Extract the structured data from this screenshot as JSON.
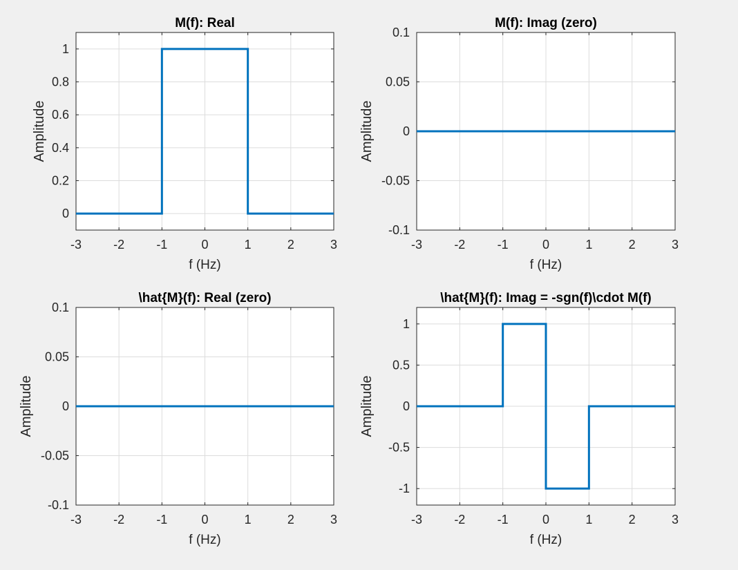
{
  "figure": {
    "background": "#f0f0f0",
    "axes_background": "#ffffff",
    "grid_color": "#dcdcdc",
    "line_color": "#0072bd"
  },
  "chart_data": [
    {
      "type": "line",
      "title": "M(f): Real",
      "xlabel": "f (Hz)",
      "ylabel": "Amplitude",
      "xlim": [
        -3,
        3
      ],
      "ylim": [
        -0.1,
        1.1
      ],
      "xticks": [
        -3,
        -2,
        -1,
        0,
        1,
        2,
        3
      ],
      "xtick_labels": [
        "-3",
        "-2",
        "-1",
        "0",
        "1",
        "2",
        "3"
      ],
      "yticks": [
        0,
        0.2,
        0.4,
        0.6,
        0.8,
        1
      ],
      "ytick_labels": [
        "0",
        "0.2",
        "0.4",
        "0.6",
        "0.8",
        "1"
      ],
      "grid": true,
      "series": [
        {
          "x": [
            -3,
            -1,
            -1,
            1,
            1,
            3
          ],
          "y": [
            0,
            0,
            1,
            1,
            0,
            0
          ]
        }
      ]
    },
    {
      "type": "line",
      "title": "M(f): Imag (zero)",
      "xlabel": "f (Hz)",
      "ylabel": "Amplitude",
      "xlim": [
        -3,
        3
      ],
      "ylim": [
        -0.1,
        0.1
      ],
      "xticks": [
        -3,
        -2,
        -1,
        0,
        1,
        2,
        3
      ],
      "xtick_labels": [
        "-3",
        "-2",
        "-1",
        "0",
        "1",
        "2",
        "3"
      ],
      "yticks": [
        -0.1,
        -0.05,
        0,
        0.05,
        0.1
      ],
      "ytick_labels": [
        "-0.1",
        "-0.05",
        "0",
        "0.05",
        "0.1"
      ],
      "grid": true,
      "series": [
        {
          "x": [
            -3,
            3
          ],
          "y": [
            0,
            0
          ]
        }
      ]
    },
    {
      "type": "line",
      "title": "\\hat{M}(f): Real (zero)",
      "xlabel": "f (Hz)",
      "ylabel": "Amplitude",
      "xlim": [
        -3,
        3
      ],
      "ylim": [
        -0.1,
        0.1
      ],
      "xticks": [
        -3,
        -2,
        -1,
        0,
        1,
        2,
        3
      ],
      "xtick_labels": [
        "-3",
        "-2",
        "-1",
        "0",
        "1",
        "2",
        "3"
      ],
      "yticks": [
        -0.1,
        -0.05,
        0,
        0.05,
        0.1
      ],
      "ytick_labels": [
        "-0.1",
        "-0.05",
        "0",
        "0.05",
        "0.1"
      ],
      "grid": true,
      "series": [
        {
          "x": [
            -3,
            3
          ],
          "y": [
            0,
            0
          ]
        }
      ]
    },
    {
      "type": "line",
      "title": "\\hat{M}(f): Imag = -sgn(f)\\cdot M(f)",
      "xlabel": "f (Hz)",
      "ylabel": "Amplitude",
      "xlim": [
        -3,
        3
      ],
      "ylim": [
        -1.2,
        1.2
      ],
      "xticks": [
        -3,
        -2,
        -1,
        0,
        1,
        2,
        3
      ],
      "xtick_labels": [
        "-3",
        "-2",
        "-1",
        "0",
        "1",
        "2",
        "3"
      ],
      "yticks": [
        -1,
        -0.5,
        0,
        0.5,
        1
      ],
      "ytick_labels": [
        "-1",
        "-0.5",
        "0",
        "0.5",
        "1"
      ],
      "grid": true,
      "series": [
        {
          "x": [
            -3,
            -1,
            -1,
            0,
            0,
            1,
            1,
            3
          ],
          "y": [
            0,
            0,
            1,
            1,
            -1,
            -1,
            0,
            0
          ]
        }
      ]
    }
  ]
}
